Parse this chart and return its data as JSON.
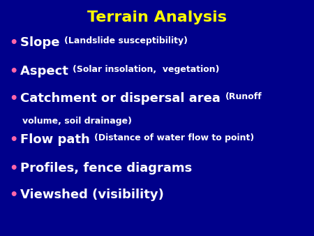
{
  "title": "Terrain Analysis",
  "title_color": "#FFFF00",
  "background_color": "#00008B",
  "bullet_color": "#FF66AA",
  "text_color": "#FFFFFF",
  "bullet_items": [
    {
      "line1_main": "Slope ",
      "line1_small": "(Landslide susceptibility)",
      "line2": ""
    },
    {
      "line1_main": "Aspect ",
      "line1_small": "(Solar insolation,  vegetation)",
      "line2": ""
    },
    {
      "line1_main": "Catchment or dispersal area ",
      "line1_small": "(Runoff",
      "line2": "volume, soil drainage)"
    },
    {
      "line1_main": "Flow path ",
      "line1_small": "(Distance of water flow to point)",
      "line2": ""
    },
    {
      "line1_main": "Profiles, fence diagrams",
      "line1_small": "",
      "line2": ""
    },
    {
      "line1_main": "Viewshed (visibility)",
      "line1_small": "",
      "line2": ""
    }
  ],
  "title_fontsize": 16,
  "main_fontsize": 13,
  "small_fontsize": 9,
  "figwidth": 4.5,
  "figheight": 3.38,
  "dpi": 100
}
